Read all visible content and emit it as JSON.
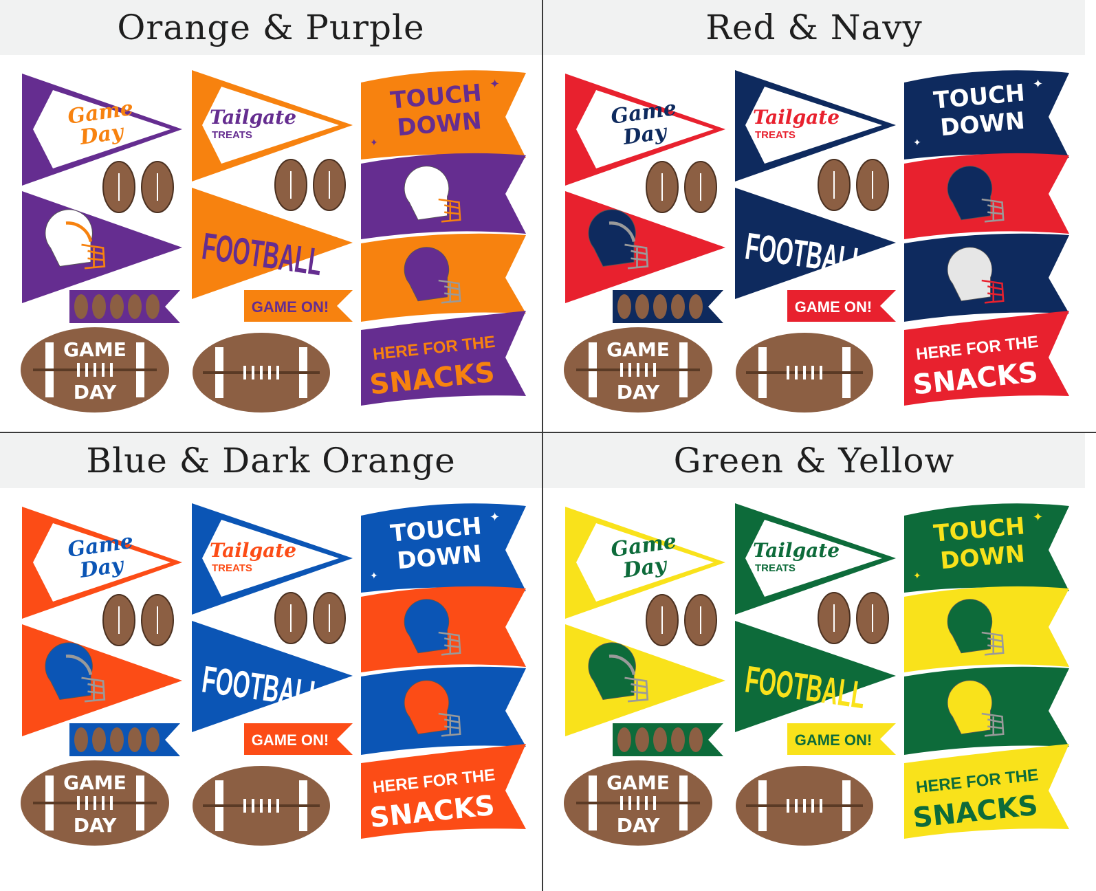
{
  "labels": {
    "game_day_script_1": "Game",
    "game_day_script_2": "Day",
    "tailgate": "Tailgate",
    "treats": "TREATS",
    "touch": "TOUCH",
    "down": "DOWN",
    "football": "FOOTBALL",
    "game_on": "GAME ON!",
    "here_for_the": "HERE FOR THE",
    "snacks": "SNACKS",
    "game": "GAME",
    "day": "DAY"
  },
  "shared_colors": {
    "football_brown": "#8c5f43",
    "header_bg": "#f1f2f2",
    "divider": "#3a3a3a",
    "facemask_gray": "#9a9a9a"
  },
  "quadrants": [
    {
      "title": "Orange & Purple",
      "colors": {
        "game_day_pennant": "#652d90",
        "game_day_text": "#f7820f",
        "helmet_pennant": "#652d90",
        "helmet_pennant_helmet": "#ffffff",
        "helmet_pennant_trim": "#f7820f",
        "tailgate_border": "#f7820f",
        "tailgate_text": "#652d90",
        "football_pennant": "#f7820f",
        "football_text": "#652d90",
        "small_banner": "#652d90",
        "game_on_banner": "#f7820f",
        "game_on_text": "#652d90",
        "touchdown_flag": "#f7820f",
        "touchdown_text": "#652d90",
        "helmet_flag_1": "#652d90",
        "helmet_flag_1_helmet": "#ffffff",
        "helmet_flag_1_trim": "#f7820f",
        "helmet_flag_2": "#f7820f",
        "helmet_flag_2_helmet": "#652d90",
        "helmet_flag_2_trim": "#9a9a9a",
        "snacks_flag": "#652d90",
        "snacks_text": "#f7820f"
      }
    },
    {
      "title": "Red & Navy",
      "colors": {
        "game_day_pennant": "#e8212e",
        "game_day_text": "#0e2a5e",
        "helmet_pennant": "#e8212e",
        "helmet_pennant_helmet": "#0e2a5e",
        "helmet_pennant_trim": "#9a9a9a",
        "tailgate_border": "#0e2a5e",
        "tailgate_text": "#e8212e",
        "football_pennant": "#0e2a5e",
        "football_text": "#ffffff",
        "small_banner": "#0e2a5e",
        "game_on_banner": "#e8212e",
        "game_on_text": "#ffffff",
        "touchdown_flag": "#0e2a5e",
        "touchdown_text": "#ffffff",
        "helmet_flag_1": "#e8212e",
        "helmet_flag_1_helmet": "#0e2a5e",
        "helmet_flag_1_trim": "#9a9a9a",
        "helmet_flag_2": "#0e2a5e",
        "helmet_flag_2_helmet": "#e6e6e6",
        "helmet_flag_2_trim": "#e8212e",
        "snacks_flag": "#e8212e",
        "snacks_text": "#ffffff"
      }
    },
    {
      "title": "Blue & Dark Orange",
      "colors": {
        "game_day_pennant": "#fc4c16",
        "game_day_text": "#0b55b5",
        "helmet_pennant": "#fc4c16",
        "helmet_pennant_helmet": "#0b55b5",
        "helmet_pennant_trim": "#9a9a9a",
        "tailgate_border": "#0b55b5",
        "tailgate_text": "#fc4c16",
        "football_pennant": "#0b55b5",
        "football_text": "#ffffff",
        "small_banner": "#0b55b5",
        "game_on_banner": "#fc4c16",
        "game_on_text": "#ffffff",
        "touchdown_flag": "#0b55b5",
        "touchdown_text": "#ffffff",
        "helmet_flag_1": "#fc4c16",
        "helmet_flag_1_helmet": "#0b55b5",
        "helmet_flag_1_trim": "#9a9a9a",
        "helmet_flag_2": "#0b55b5",
        "helmet_flag_2_helmet": "#fc4c16",
        "helmet_flag_2_trim": "#9a9a9a",
        "snacks_flag": "#fc4c16",
        "snacks_text": "#ffffff"
      }
    },
    {
      "title": "Green & Yellow",
      "colors": {
        "game_day_pennant": "#f9e21b",
        "game_day_text": "#0d6b3a",
        "helmet_pennant": "#f9e21b",
        "helmet_pennant_helmet": "#0d6b3a",
        "helmet_pennant_trim": "#9a9a9a",
        "tailgate_border": "#0d6b3a",
        "tailgate_text": "#0d6b3a",
        "football_pennant": "#0d6b3a",
        "football_text": "#f9e21b",
        "small_banner": "#0d6b3a",
        "game_on_banner": "#f9e21b",
        "game_on_text": "#0d6b3a",
        "touchdown_flag": "#0d6b3a",
        "touchdown_text": "#f9e21b",
        "helmet_flag_1": "#f9e21b",
        "helmet_flag_1_helmet": "#0d6b3a",
        "helmet_flag_1_trim": "#9a9a9a",
        "helmet_flag_2": "#0d6b3a",
        "helmet_flag_2_helmet": "#f9e21b",
        "helmet_flag_2_trim": "#9a9a9a",
        "snacks_flag": "#f9e21b",
        "snacks_text": "#0d6b3a"
      }
    }
  ]
}
